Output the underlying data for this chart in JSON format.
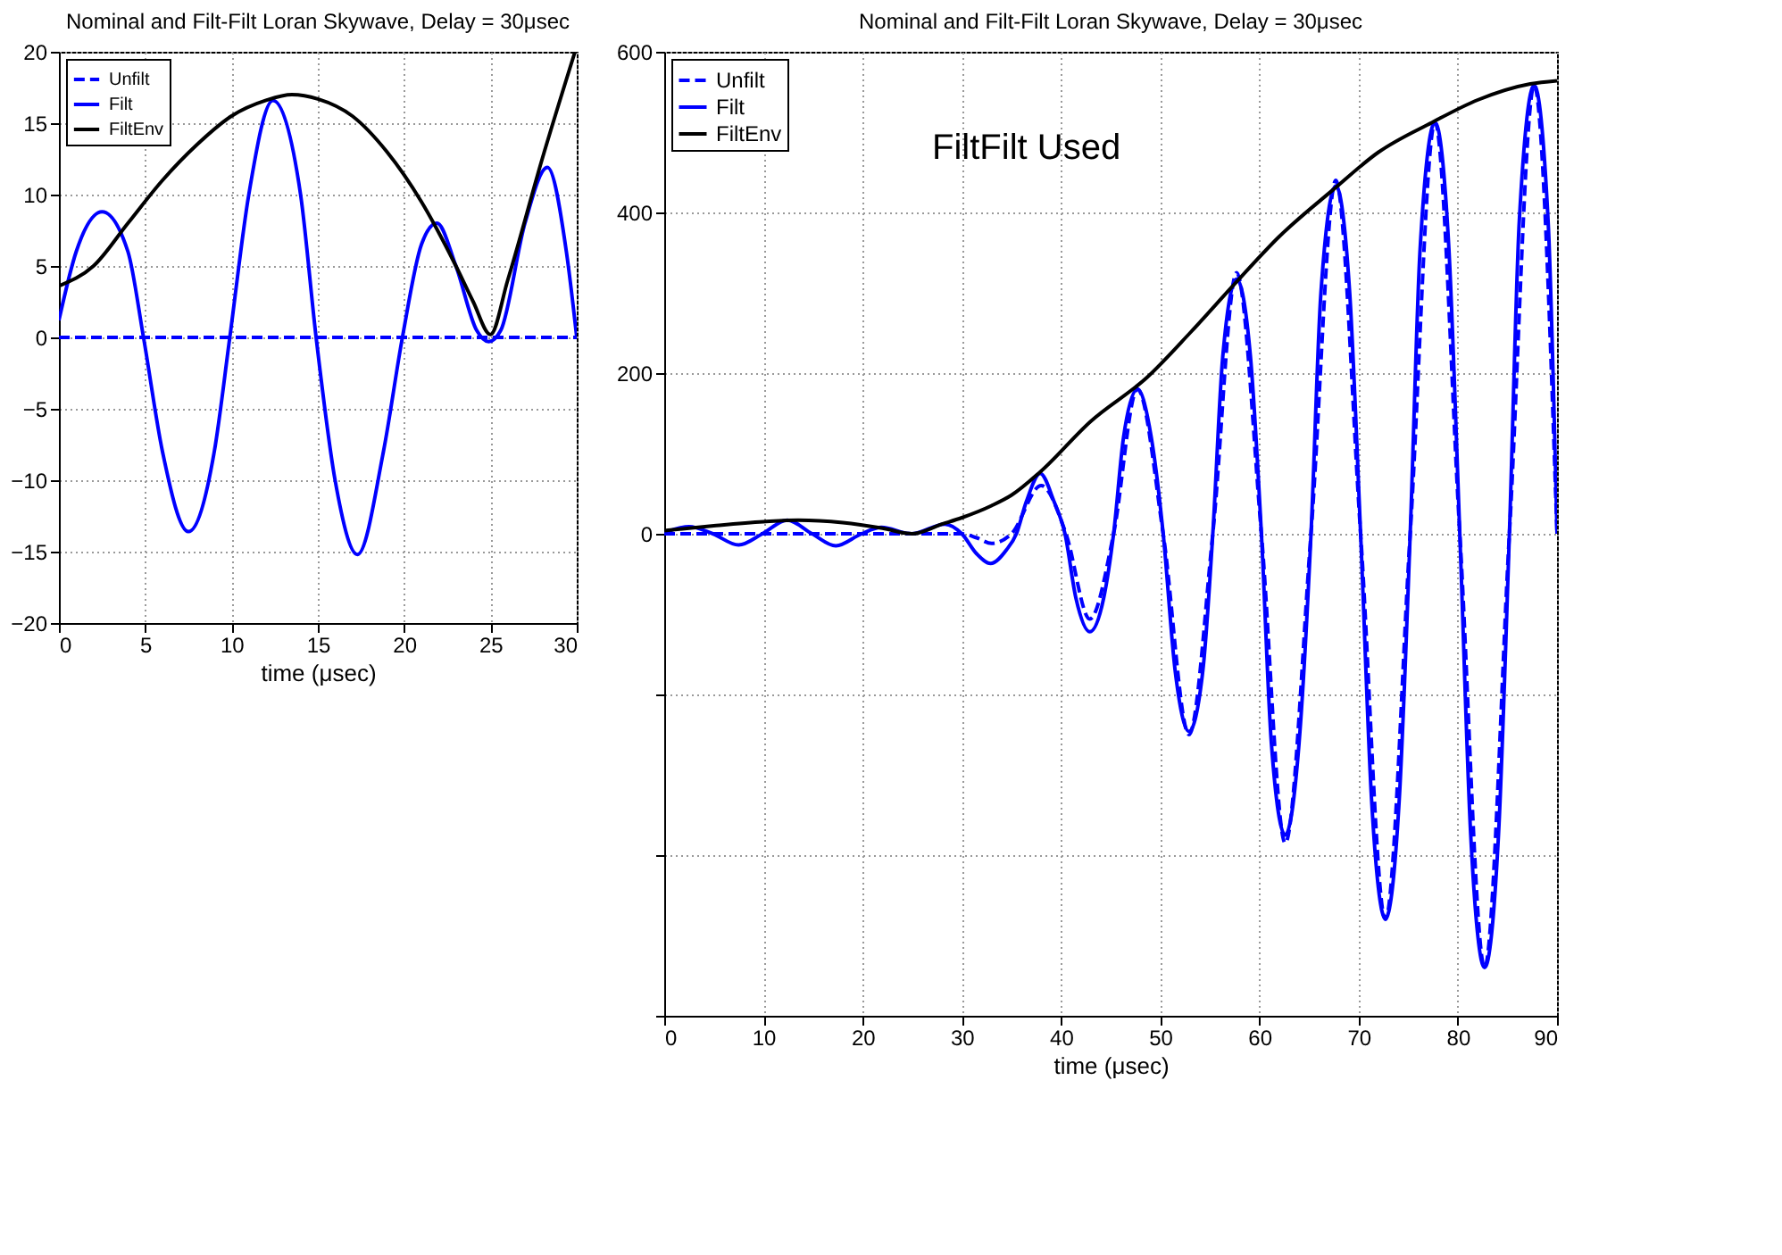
{
  "chart_data": [
    {
      "type": "line",
      "title": "Nominal and Filt-Filt Loran Skywave, Delay = 30μsec",
      "xlabel": "time (μsec)",
      "xlim": [
        0,
        30
      ],
      "xticks": [
        0,
        5,
        10,
        15,
        20,
        25,
        30
      ],
      "ylim": [
        -20,
        20
      ],
      "yticks": [
        -20,
        -15,
        -10,
        -5,
        0,
        5,
        10,
        15,
        20
      ],
      "grid": true,
      "legend": "top left",
      "series": [
        {
          "name": "Unfilt",
          "color": "#0000ff",
          "line_style": "dashed",
          "x": [
            0,
            30
          ],
          "values": [
            0,
            0
          ]
        },
        {
          "name": "Filt",
          "color": "#0000ff",
          "line_style": "solid",
          "x": [
            0,
            1,
            2.5,
            4,
            4.9,
            6,
            7.5,
            9,
            9.9,
            11,
            12.4,
            14,
            14.9,
            16,
            17.3,
            18.8,
            19.9,
            21,
            21.9,
            23,
            24.2,
            24.9,
            25.6,
            27,
            28.3,
            29.4,
            30
          ],
          "values": [
            1.2,
            6,
            8.8,
            6,
            0,
            -8,
            -13.6,
            -8,
            0,
            10,
            16.6,
            10,
            0,
            -10,
            -15.2,
            -8,
            0,
            6.5,
            8,
            5,
            0.5,
            -0.3,
            0.5,
            8,
            11.9,
            6,
            0
          ]
        },
        {
          "name": "FiltEnv",
          "color": "#000000",
          "line_style": "solid",
          "x": [
            0,
            2,
            4,
            6,
            8,
            10,
            12,
            13.5,
            15,
            17,
            19,
            21,
            23,
            24,
            25,
            26,
            28,
            29.9
          ],
          "values": [
            3.6,
            5,
            8,
            11,
            13.5,
            15.5,
            16.6,
            17,
            16.7,
            15.5,
            13,
            9.5,
            5,
            2.5,
            0.2,
            4,
            12.5,
            20
          ]
        }
      ]
    },
    {
      "type": "line",
      "title": "Nominal and Filt-Filt Loran Skywave, Delay = 30μsec",
      "xlabel": "time (μsec)",
      "xlim": [
        0,
        90
      ],
      "xticks": [
        0,
        10,
        20,
        30,
        40,
        50,
        60,
        70,
        80,
        90
      ],
      "ylim": [
        -600,
        600
      ],
      "yticks": [
        {
          "value": -600,
          "label": null
        },
        {
          "value": -400,
          "label": null
        },
        {
          "value": -200,
          "label": null
        },
        0,
        200,
        400,
        600
      ],
      "grid": true,
      "legend": "top left",
      "annotations": [
        "FiltFilt Used"
      ],
      "series": [
        {
          "name": "Unfilt",
          "color": "#0000ff",
          "line_style": "dashed",
          "x": [
            0,
            30,
            31.5,
            33,
            35,
            38,
            40.5,
            42.9,
            45.3,
            47.7,
            50.3,
            52.9,
            55.3,
            57.7,
            60.2,
            62.6,
            65.2,
            67.7,
            70.2,
            72.7,
            75.2,
            77.7,
            80.2,
            82.7,
            85.2,
            87.7,
            90
          ],
          "values": [
            0,
            0,
            -5,
            -12,
            0,
            60,
            0,
            -106,
            0,
            180,
            0,
            -250,
            0,
            325,
            0,
            -385,
            0,
            440,
            0,
            -480,
            0,
            512,
            0,
            -540,
            0,
            558,
            0
          ]
        },
        {
          "name": "Filt",
          "color": "#0000ff",
          "line_style": "solid",
          "x": [
            0,
            2.5,
            4.9,
            7.5,
            9.9,
            12.4,
            14.9,
            17.3,
            19.9,
            21.9,
            24.9,
            28.3,
            30,
            31.5,
            32.9,
            34.5,
            35.5,
            36.5,
            37.9,
            39.3,
            40.4,
            41.5,
            42.9,
            44.3,
            45.3,
            46.3,
            47.7,
            49.1,
            50.3,
            51.5,
            52.9,
            54.3,
            55.3,
            56.3,
            57.7,
            59.1,
            60.2,
            61.2,
            62.6,
            64,
            65.2,
            66.2,
            67.7,
            69.1,
            70.2,
            71.3,
            72.7,
            74.1,
            75.2,
            76.2,
            77.7,
            79.1,
            80.2,
            81.3,
            82.7,
            84.1,
            85.2,
            86.2,
            87.7,
            89.1,
            90
          ],
          "values": [
            1,
            9,
            0,
            -14,
            0,
            17,
            0,
            -15,
            0,
            8,
            0,
            12,
            0,
            -25,
            -37,
            -20,
            0,
            40,
            75,
            40,
            0,
            -80,
            -122,
            -80,
            0,
            120,
            180,
            120,
            0,
            -170,
            -246,
            -170,
            0,
            220,
            317,
            220,
            0,
            -260,
            -375,
            -260,
            0,
            300,
            433,
            300,
            0,
            -330,
            -479,
            -330,
            0,
            355,
            512,
            355,
            0,
            -375,
            -540,
            -375,
            0,
            390,
            558,
            390,
            0
          ]
        },
        {
          "name": "FiltEnv",
          "color": "#000000",
          "line_style": "solid",
          "x": [
            0,
            5,
            10,
            13.5,
            18,
            22,
            25,
            28,
            30,
            33,
            35,
            37.9,
            43,
            48.7,
            53,
            57.5,
            62,
            67.5,
            72,
            77.4,
            82,
            87.3,
            90
          ],
          "values": [
            4,
            10,
            15,
            17,
            14,
            7,
            0,
            12,
            20,
            35,
            48,
            77,
            140,
            195,
            250,
            311,
            370,
            429,
            475,
            512,
            540,
            560,
            564
          ]
        }
      ]
    }
  ]
}
